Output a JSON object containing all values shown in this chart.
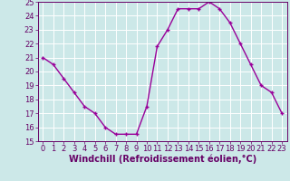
{
  "x": [
    0,
    1,
    2,
    3,
    4,
    5,
    6,
    7,
    8,
    9,
    10,
    11,
    12,
    13,
    14,
    15,
    16,
    17,
    18,
    19,
    20,
    21,
    22,
    23
  ],
  "y": [
    21.0,
    20.5,
    19.5,
    18.5,
    17.5,
    17.0,
    16.0,
    15.5,
    15.5,
    15.5,
    17.5,
    21.8,
    23.0,
    24.5,
    24.5,
    24.5,
    25.0,
    24.5,
    23.5,
    22.0,
    20.5,
    19.0,
    18.5,
    17.0
  ],
  "line_color": "#990099",
  "marker": "+",
  "marker_size": 3,
  "linewidth": 1.0,
  "bg_color": "#cce8e8",
  "grid_color": "#ffffff",
  "xlabel": "Windchill (Refroidissement éolien,°C)",
  "xlabel_fontsize": 7,
  "tick_fontsize": 6,
  "xlim": [
    -0.5,
    23.5
  ],
  "ylim": [
    15,
    25
  ],
  "yticks": [
    15,
    16,
    17,
    18,
    19,
    20,
    21,
    22,
    23,
    24,
    25
  ],
  "xticks": [
    0,
    1,
    2,
    3,
    4,
    5,
    6,
    7,
    8,
    9,
    10,
    11,
    12,
    13,
    14,
    15,
    16,
    17,
    18,
    19,
    20,
    21,
    22,
    23
  ],
  "tick_color": "#660066",
  "label_color": "#660066"
}
